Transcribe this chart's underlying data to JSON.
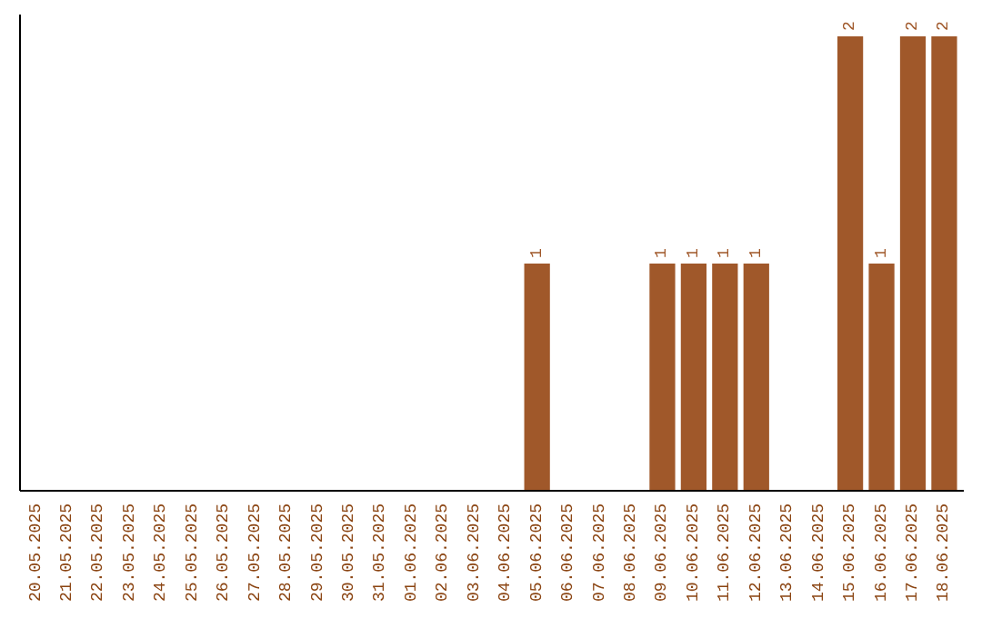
{
  "chart_data": {
    "type": "bar",
    "categories": [
      "20.05.2025",
      "21.05.2025",
      "22.05.2025",
      "23.05.2025",
      "24.05.2025",
      "25.05.2025",
      "26.05.2025",
      "27.05.2025",
      "28.05.2025",
      "29.05.2025",
      "30.05.2025",
      "31.05.2025",
      "01.06.2025",
      "02.06.2025",
      "03.06.2025",
      "04.06.2025",
      "05.06.2025",
      "06.06.2025",
      "07.06.2025",
      "08.06.2025",
      "09.06.2025",
      "10.06.2025",
      "11.06.2025",
      "12.06.2025",
      "13.06.2025",
      "14.06.2025",
      "15.06.2025",
      "16.06.2025",
      "17.06.2025",
      "18.06.2025"
    ],
    "values": [
      null,
      null,
      null,
      null,
      null,
      null,
      null,
      null,
      null,
      null,
      null,
      null,
      null,
      null,
      null,
      null,
      1,
      null,
      null,
      null,
      1,
      1,
      1,
      1,
      null,
      null,
      2,
      1,
      2,
      2
    ],
    "color": "#a0582a",
    "data_labels": true
  }
}
